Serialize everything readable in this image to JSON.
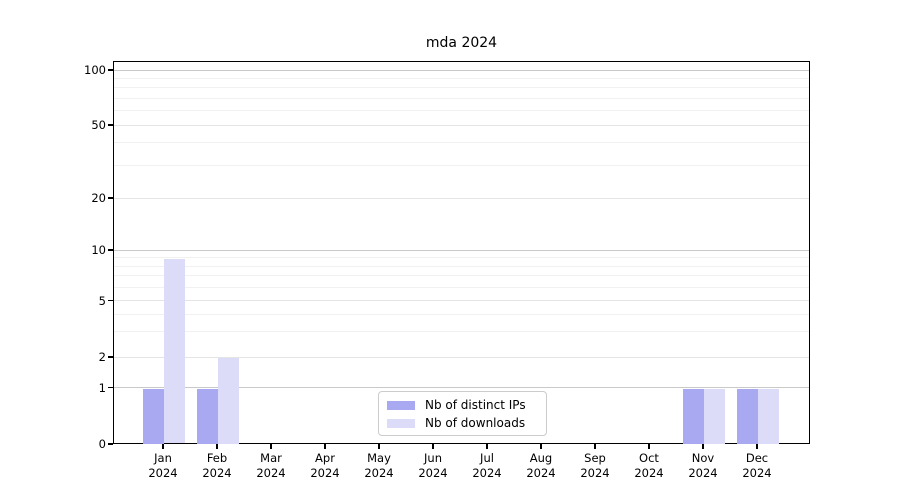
{
  "chart_data": {
    "type": "bar",
    "title": "mda 2024",
    "categories": [
      "Jan 2024",
      "Feb 2024",
      "Mar 2024",
      "Apr 2024",
      "May 2024",
      "Jun 2024",
      "Jul 2024",
      "Aug 2024",
      "Sep 2024",
      "Oct 2024",
      "Nov 2024",
      "Dec 2024"
    ],
    "x_tick_line1": [
      "Jan",
      "Feb",
      "Mar",
      "Apr",
      "May",
      "Jun",
      "Jul",
      "Aug",
      "Sep",
      "Oct",
      "Nov",
      "Dec"
    ],
    "x_tick_line2": "2024",
    "series": [
      {
        "name": "Nb of distinct IPs",
        "color": "#a9a9f1",
        "values": [
          1,
          1,
          0,
          0,
          0,
          0,
          0,
          0,
          0,
          0,
          1,
          1
        ]
      },
      {
        "name": "Nb of downloads",
        "color": "#dcdcf8",
        "values": [
          9,
          2,
          0,
          0,
          0,
          0,
          0,
          0,
          0,
          0,
          1,
          1
        ]
      }
    ],
    "xlabel": "",
    "ylabel": "",
    "yscale": "log-like with 0 baseline",
    "y_ticks": [
      0,
      1,
      2,
      5,
      10,
      20,
      50,
      100
    ],
    "y_minor_gridlines": [
      3,
      4,
      6,
      7,
      8,
      9,
      30,
      40,
      60,
      70,
      80,
      90
    ],
    "ylim": [
      0,
      100
    ],
    "grid": true,
    "legend_position": "lower center",
    "colors": {
      "axis": "#000000",
      "grid_power10": "#c9c9c9",
      "grid_major": "#e4e4e4",
      "grid_minor": "#f1f1f1",
      "background": "#ffffff"
    }
  }
}
